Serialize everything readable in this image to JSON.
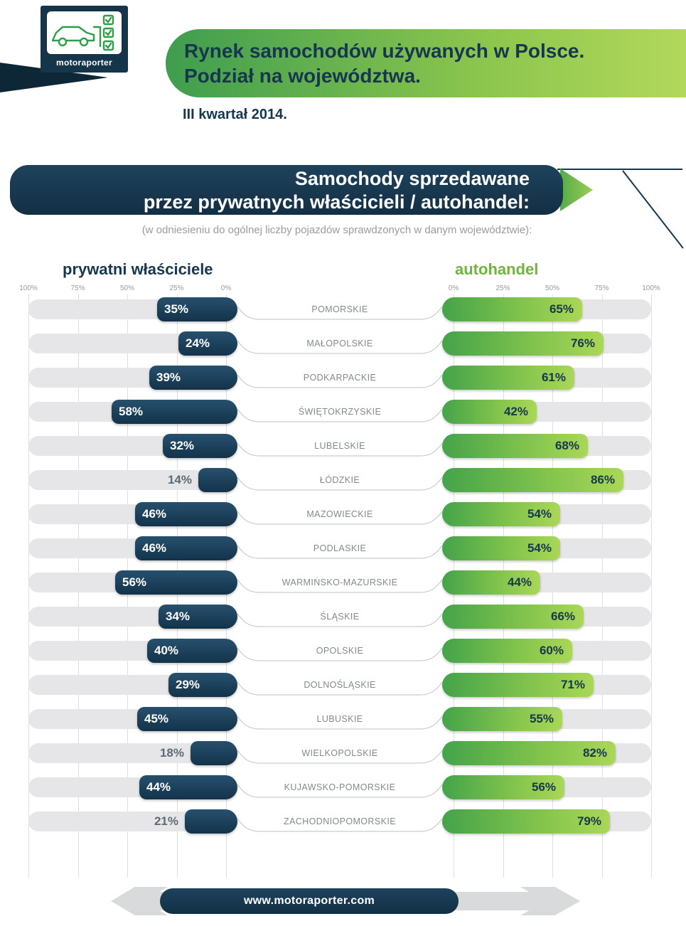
{
  "logo": {
    "brand": "motoraporter"
  },
  "header": {
    "title_line1": "Rynek samochodów używanych  w Polsce.",
    "title_line2": "Podział na województwa.",
    "quarter": "III kwartał 2014."
  },
  "section_banner": {
    "line1": "Samochody sprzedawane",
    "line2": "przez prywatnych właścicieli / autohandel:",
    "note": "(w odniesieniu do ogólnej liczby pojazdów sprawdzonych w danym województwie):"
  },
  "chart": {
    "left_header": "prywatni właściciele",
    "right_header": "autohandel",
    "left_ticks": [
      "100%",
      "75%",
      "50%",
      "25%",
      "0%"
    ],
    "right_ticks": [
      "0%",
      "25%",
      "50%",
      "75%",
      "100%"
    ]
  },
  "chart_data": {
    "type": "bar",
    "subtype": "diverging-horizontal",
    "title": "Samochody sprzedawane przez prywatnych właścicieli / autohandel",
    "unit": "%",
    "xlim": [
      0,
      100
    ],
    "value_labels": true,
    "categories": [
      "POMORSKIE",
      "MAŁOPOLSKIE",
      "PODKARPACKIE",
      "ŚWIĘTOKRZYSKIE",
      "LUBELSKIE",
      "ŁÓDZKIE",
      "MAZOWIECKIE",
      "PODLASKIE",
      "WARMIŃSKO-MAZURSKIE",
      "ŚLĄSKIE",
      "OPOLSKIE",
      "DOLNOŚLĄSKIE",
      "LUBUSKIE",
      "WIELKOPOLSKIE",
      "KUJAWSKO-POMORSKIE",
      "ZACHODNIOPOMORSKIE"
    ],
    "series": [
      {
        "name": "prywatni właściciele",
        "values": [
          35,
          24,
          39,
          58,
          32,
          14,
          46,
          46,
          56,
          34,
          40,
          29,
          45,
          18,
          44,
          21
        ]
      },
      {
        "name": "autohandel",
        "values": [
          65,
          76,
          61,
          42,
          68,
          86,
          54,
          54,
          44,
          66,
          60,
          71,
          55,
          82,
          56,
          79
        ]
      }
    ]
  },
  "footer": {
    "url": "www.motoraporter.com"
  },
  "colors": {
    "navy": "#16374e",
    "navy_dark": "#13334a",
    "green_dark": "#44a34a",
    "green_light": "#aad757",
    "green_text": "#71b33f",
    "track_gray": "#e6e6e8",
    "label_gray": "#84898e"
  }
}
